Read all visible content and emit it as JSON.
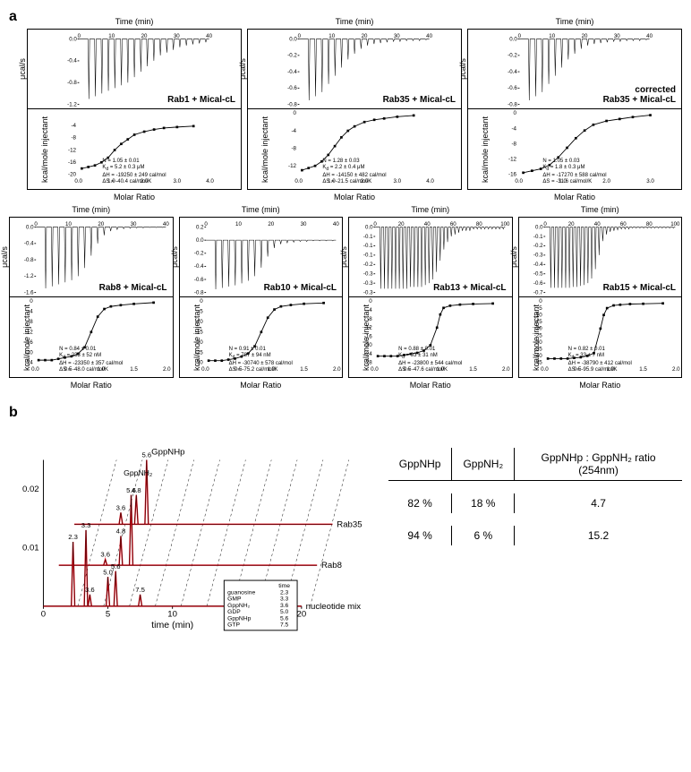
{
  "panelA": {
    "label": "a",
    "ylabel_top": "μcal/s",
    "ylabel_bottom": "kcal/mole injectant",
    "xlabel_top": "Time (min)",
    "xlabel_bottom": "Molar Ratio",
    "row1": [
      {
        "title": "Rab1 + Mical-cL",
        "time_max": 40,
        "time_ticks": [
          0,
          10,
          20,
          30,
          40
        ],
        "power_min": -1.2,
        "power_max": 0,
        "power_ticks": [
          -1.2,
          -0.8,
          -0.4,
          0.0
        ],
        "molar_max": 4.0,
        "molar_ticks": [
          0.0,
          1.0,
          2.0,
          3.0,
          4.0
        ],
        "heat_min": -20,
        "heat_max": 0,
        "heat_ticks": [
          -20,
          -16,
          -12,
          -8,
          -4
        ],
        "injections": [
          0.0,
          -1.1,
          -1.05,
          -1.0,
          -0.95,
          -0.9,
          -0.85,
          -0.8,
          -0.7,
          -0.6,
          -0.5,
          -0.4,
          -0.3,
          -0.25,
          -0.2,
          -0.15,
          -0.12,
          -0.1,
          -0.08,
          -0.06
        ],
        "isotherm": [
          [
            0.1,
            -18
          ],
          [
            0.3,
            -17.5
          ],
          [
            0.5,
            -17
          ],
          [
            0.7,
            -16
          ],
          [
            0.9,
            -14.5
          ],
          [
            1.1,
            -12
          ],
          [
            1.3,
            -10
          ],
          [
            1.5,
            -8.5
          ],
          [
            1.7,
            -7
          ],
          [
            2.0,
            -6
          ],
          [
            2.3,
            -5.3
          ],
          [
            2.6,
            -4.8
          ],
          [
            3.0,
            -4.5
          ],
          [
            3.5,
            -4.2
          ]
        ],
        "params": {
          "N": "1.05 ± 0.01",
          "Kd": "5.2 ± 0.3 μM",
          "dH": "-19250 ± 249 cal/mol",
          "dS": "-40.4 cal/mol/K"
        }
      },
      {
        "title": "Rab35 + Mical-cL",
        "time_max": 40,
        "time_ticks": [
          0,
          10,
          20,
          30,
          40
        ],
        "power_min": -0.8,
        "power_max": 0,
        "power_ticks": [
          -0.8,
          -0.6,
          -0.4,
          -0.2,
          0.0
        ],
        "molar_max": 4.0,
        "molar_ticks": [
          0.0,
          1.0,
          2.0,
          3.0,
          4.0
        ],
        "heat_min": -14,
        "heat_max": 0,
        "heat_ticks": [
          -12,
          -8,
          -4,
          0
        ],
        "injections": [
          0.0,
          -0.75,
          -0.7,
          -0.65,
          -0.55,
          -0.45,
          -0.35,
          -0.25,
          -0.18,
          -0.12,
          -0.08,
          -0.06,
          -0.05,
          -0.04,
          -0.03,
          -0.03,
          -0.02,
          -0.02,
          -0.02,
          -0.01
        ],
        "isotherm": [
          [
            0.1,
            -13
          ],
          [
            0.3,
            -12.5
          ],
          [
            0.5,
            -12
          ],
          [
            0.7,
            -11
          ],
          [
            0.9,
            -9.5
          ],
          [
            1.1,
            -7.5
          ],
          [
            1.3,
            -5.5
          ],
          [
            1.5,
            -4
          ],
          [
            1.7,
            -3
          ],
          [
            2.0,
            -2
          ],
          [
            2.3,
            -1.5
          ],
          [
            2.6,
            -1.2
          ],
          [
            3.0,
            -0.8
          ],
          [
            3.5,
            -0.5
          ]
        ],
        "params": {
          "N": "1.28 ± 0.03",
          "Kd": "2.2 ± 0.4 μM",
          "dH": "-14150 ± 482 cal/mol",
          "dS": "-21.5 cal/mol/K"
        }
      },
      {
        "title": "Rab35 + Mical-cL",
        "corrected": "corrected",
        "time_max": 40,
        "time_ticks": [
          0,
          10,
          20,
          30,
          40
        ],
        "power_min": -0.8,
        "power_max": 0,
        "power_ticks": [
          -0.8,
          -0.6,
          -0.4,
          -0.2,
          0.0
        ],
        "molar_max": 3.0,
        "molar_ticks": [
          0.0,
          1.0,
          2.0,
          3.0
        ],
        "heat_min": -16,
        "heat_max": 0,
        "heat_ticks": [
          -16,
          -12,
          -8,
          -4,
          0
        ],
        "injections": [
          0.0,
          -0.75,
          -0.7,
          -0.65,
          -0.55,
          -0.45,
          -0.35,
          -0.25,
          -0.18,
          -0.12,
          -0.08,
          -0.06,
          -0.05,
          -0.04,
          -0.03,
          -0.03,
          -0.02,
          -0.02,
          -0.02,
          -0.01
        ],
        "isotherm": [
          [
            0.1,
            -15.5
          ],
          [
            0.3,
            -15
          ],
          [
            0.5,
            -14.5
          ],
          [
            0.7,
            -13.5
          ],
          [
            0.9,
            -11.5
          ],
          [
            1.1,
            -9
          ],
          [
            1.3,
            -6.5
          ],
          [
            1.5,
            -4.5
          ],
          [
            1.7,
            -3
          ],
          [
            2.0,
            -2
          ],
          [
            2.3,
            -1.5
          ],
          [
            2.6,
            -1
          ],
          [
            3.0,
            -0.5
          ]
        ],
        "params": {
          "N": "1.05 ± 0.03",
          "Kd": "1.8 ± 0.3 μM",
          "dH": "-17270 ± 588 cal/mol",
          "dS": "-31.6 cal/mol/K"
        }
      }
    ],
    "row2": [
      {
        "title": "Rab8 + Mical-cL",
        "time_max": 40,
        "time_ticks": [
          0,
          10,
          20,
          30,
          40
        ],
        "power_min": -1.6,
        "power_max": 0,
        "power_ticks": [
          -1.6,
          -1.2,
          -0.8,
          -0.4,
          0.0
        ],
        "molar_max": 2.0,
        "molar_ticks": [
          0.0,
          0.5,
          1.0,
          1.5,
          2.0
        ],
        "heat_min": -24,
        "heat_max": 0,
        "heat_ticks": [
          -24,
          -20,
          -16,
          -12,
          -8,
          -4,
          0
        ],
        "injections": [
          0.0,
          -1.5,
          -1.45,
          -1.4,
          -1.35,
          -1.3,
          -1.2,
          -1.0,
          -0.7,
          -0.4,
          -0.2,
          -0.1,
          -0.06,
          -0.04,
          -0.03,
          -0.02,
          -0.02,
          -0.01,
          -0.01,
          -0.01
        ],
        "isotherm": [
          [
            0.05,
            -23
          ],
          [
            0.15,
            -23
          ],
          [
            0.25,
            -23
          ],
          [
            0.35,
            -22.5
          ],
          [
            0.45,
            -22
          ],
          [
            0.55,
            -21.5
          ],
          [
            0.65,
            -20.5
          ],
          [
            0.75,
            -18
          ],
          [
            0.85,
            -12
          ],
          [
            0.95,
            -6
          ],
          [
            1.05,
            -3
          ],
          [
            1.15,
            -2
          ],
          [
            1.3,
            -1.5
          ],
          [
            1.5,
            -1
          ],
          [
            1.8,
            -0.5
          ]
        ],
        "params": {
          "N": "0.84 ± 0.01",
          "Kd": "233 ± 52 nM",
          "dH": "-23350 ± 357 cal/mol",
          "dS": "-48.0 cal/mol/K"
        }
      },
      {
        "title": "Rab10 + Mical-cL",
        "time_max": 40,
        "time_ticks": [
          0,
          10,
          20,
          30,
          40
        ],
        "power_min": -0.8,
        "power_max": 0.2,
        "power_ticks": [
          -0.8,
          -0.6,
          -0.4,
          -0.2,
          0.0,
          0.2
        ],
        "molar_max": 2.0,
        "molar_ticks": [
          0.0,
          0.5,
          1.0,
          1.5,
          2.0
        ],
        "heat_min": -30,
        "heat_max": 0,
        "heat_ticks": [
          -30,
          -25,
          -20,
          -15,
          -10,
          -5,
          0
        ],
        "injections": [
          0.0,
          -0.75,
          -0.73,
          -0.71,
          -0.69,
          -0.66,
          -0.62,
          -0.55,
          -0.42,
          -0.25,
          -0.12,
          -0.06,
          -0.04,
          -0.03,
          -0.02,
          -0.02,
          -0.01,
          -0.01,
          -0.01,
          -0.01
        ],
        "isotherm": [
          [
            0.05,
            -29
          ],
          [
            0.15,
            -29
          ],
          [
            0.25,
            -29
          ],
          [
            0.35,
            -28.5
          ],
          [
            0.45,
            -28
          ],
          [
            0.55,
            -27
          ],
          [
            0.65,
            -25.5
          ],
          [
            0.75,
            -22
          ],
          [
            0.85,
            -15
          ],
          [
            0.95,
            -8
          ],
          [
            1.05,
            -4
          ],
          [
            1.15,
            -2.5
          ],
          [
            1.3,
            -1.8
          ],
          [
            1.5,
            -1.2
          ],
          [
            1.8,
            -0.8
          ]
        ],
        "params": {
          "N": "0.91 ± 0.01",
          "Kd": "787 ± 94 nM",
          "dH": "-30740 ± 578 cal/mol",
          "dS": "-75.2 cal/mol/K"
        }
      },
      {
        "title": "Rab13 + Mical-cL",
        "time_max": 100,
        "time_ticks": [
          0,
          20,
          40,
          60,
          80,
          100
        ],
        "power_min": -0.35,
        "power_max": 0,
        "power_ticks": [
          -0.35,
          -0.3,
          -0.25,
          -0.2,
          -0.15,
          -0.1,
          -0.05,
          0.0
        ],
        "molar_max": 2.0,
        "molar_ticks": [
          0.0,
          0.5,
          1.0,
          1.5,
          2.0
        ],
        "heat_min": -28,
        "heat_max": 0,
        "heat_ticks": [
          -28,
          -24,
          -20,
          -16,
          -12,
          -8,
          -4,
          0
        ],
        "injections": [
          0.0,
          -0.33,
          -0.33,
          -0.33,
          -0.33,
          -0.33,
          -0.33,
          -0.33,
          -0.33,
          -0.32,
          -0.32,
          -0.32,
          -0.32,
          -0.31,
          -0.3,
          -0.28,
          -0.24,
          -0.18,
          -0.12,
          -0.08,
          -0.05,
          -0.04,
          -0.03,
          -0.02,
          -0.02,
          -0.02,
          -0.01,
          -0.01,
          -0.01,
          -0.01,
          -0.01,
          -0.01,
          -0.01,
          -0.01,
          -0.01
        ],
        "isotherm": [
          [
            0.05,
            -25
          ],
          [
            0.15,
            -25
          ],
          [
            0.25,
            -25
          ],
          [
            0.35,
            -25
          ],
          [
            0.45,
            -24.5
          ],
          [
            0.55,
            -24
          ],
          [
            0.65,
            -23.5
          ],
          [
            0.75,
            -22.5
          ],
          [
            0.85,
            -20
          ],
          [
            0.95,
            -12
          ],
          [
            1.0,
            -6
          ],
          [
            1.05,
            -3
          ],
          [
            1.15,
            -2
          ],
          [
            1.3,
            -1.5
          ],
          [
            1.5,
            -1.2
          ],
          [
            1.8,
            -1
          ]
        ],
        "params": {
          "N": "0.88 ± 0.01",
          "Kd": "93 ± 31 nM",
          "dH": "-23800 ± 544 cal/mol",
          "dS": "-47.6 cal/mol/K"
        }
      },
      {
        "title": "Rab15 + Mical-cL",
        "time_max": 100,
        "time_ticks": [
          0,
          20,
          40,
          60,
          80,
          100
        ],
        "power_min": -0.7,
        "power_max": 0,
        "power_ticks": [
          -0.7,
          -0.6,
          -0.5,
          -0.4,
          -0.3,
          -0.2,
          -0.1,
          0.0
        ],
        "molar_max": 2.0,
        "molar_ticks": [
          0.0,
          0.5,
          1.0,
          1.5,
          2.0
        ],
        "heat_min": -45,
        "heat_max": 0,
        "heat_ticks": [
          -45,
          -40,
          -35,
          -30,
          -25,
          -20,
          -15,
          -10,
          -5,
          0
        ],
        "injections": [
          0.0,
          -0.65,
          -0.65,
          -0.65,
          -0.65,
          -0.65,
          -0.65,
          -0.64,
          -0.64,
          -0.63,
          -0.62,
          -0.6,
          -0.55,
          -0.45,
          -0.3,
          -0.15,
          -0.08,
          -0.05,
          -0.04,
          -0.03,
          -0.02,
          -0.02,
          -0.02,
          -0.01,
          -0.01,
          -0.01,
          -0.01,
          -0.01,
          -0.01,
          -0.01,
          -0.01,
          -0.01,
          -0.01,
          -0.01,
          -0.01
        ],
        "isotherm": [
          [
            0.05,
            -42
          ],
          [
            0.15,
            -42
          ],
          [
            0.25,
            -42
          ],
          [
            0.35,
            -42
          ],
          [
            0.45,
            -41.5
          ],
          [
            0.55,
            -41
          ],
          [
            0.65,
            -40
          ],
          [
            0.75,
            -38
          ],
          [
            0.85,
            -20
          ],
          [
            0.9,
            -10
          ],
          [
            0.95,
            -5
          ],
          [
            1.05,
            -3
          ],
          [
            1.15,
            -2.5
          ],
          [
            1.3,
            -2
          ],
          [
            1.5,
            -1.8
          ],
          [
            1.8,
            -1.5
          ]
        ],
        "params": {
          "N": "0.82 ± 0.01",
          "Kd": "33 ± 7 nM",
          "dH": "-38790 ± 412 cal/mol",
          "dS": "-95.9 cal/mol/K"
        }
      }
    ]
  },
  "panelB": {
    "label": "b",
    "xlabel": "time (min)",
    "xlim": [
      0,
      20
    ],
    "ylim": [
      0,
      0.025
    ],
    "yticks": [
      0.01,
      0.02
    ],
    "line_color": "#e30613",
    "base_color": "#000000",
    "trace_labels": [
      "Rab35",
      "Rab8",
      "nucleotide mix"
    ],
    "peak_labels_top": "GppNHp",
    "peak_labels_gppnh": "GppNH",
    "traces": [
      {
        "label": "Rab35",
        "offset_y": 0.014,
        "offset_x": 6,
        "peaks": [
          [
            3.6,
            0.002,
            "3.6"
          ],
          [
            4.8,
            0.005,
            "4.8"
          ],
          [
            5.6,
            0.011,
            "5.6"
          ]
        ]
      },
      {
        "label": "Rab8",
        "offset_y": 0.007,
        "offset_x": 3,
        "peaks": [
          [
            3.6,
            0.001,
            "3.6"
          ],
          [
            4.8,
            0.005,
            "4.8"
          ],
          [
            5.6,
            0.012,
            "5.6"
          ]
        ]
      },
      {
        "label": "nucleotide mix",
        "offset_y": 0.0,
        "offset_x": 0,
        "peaks": [
          [
            2.3,
            0.011,
            "2.3"
          ],
          [
            3.3,
            0.013,
            "3.3"
          ],
          [
            3.6,
            0.002,
            "3.6"
          ],
          [
            5.0,
            0.005,
            "5.0"
          ],
          [
            5.6,
            0.006,
            "5.6"
          ],
          [
            7.5,
            0.002,
            "7.5"
          ]
        ]
      }
    ],
    "legend": {
      "header": "time",
      "rows": [
        [
          "guanosine",
          "2.3"
        ],
        [
          "GMP",
          "3.3"
        ],
        [
          "GppNH₂",
          "3.6"
        ],
        [
          "GDP",
          "5.0"
        ],
        [
          "GppNHp",
          "5.6"
        ],
        [
          "GTP",
          "7.5"
        ]
      ]
    },
    "table": {
      "headers": [
        "GppNHp",
        "GppNH₂",
        "GppNHp : GppNH₂ ratio (254nm)"
      ],
      "rows": [
        {
          "label": "Rab35",
          "vals": [
            "82 %",
            "18 %",
            "4.7"
          ]
        },
        {
          "label": "Rab8",
          "vals": [
            "94 %",
            "6 %",
            "15.2"
          ]
        }
      ]
    }
  }
}
